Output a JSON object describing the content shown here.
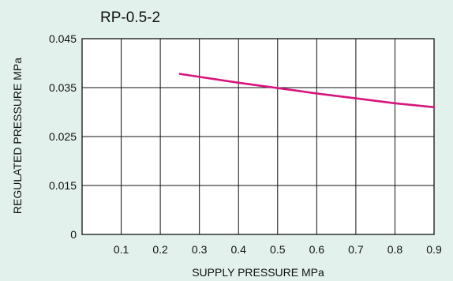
{
  "chart_data": {
    "type": "line",
    "title": "RP-0.5-2",
    "xlabel": "SUPPLY PRESSURE  MPa",
    "ylabel": "REGULATED PRESSURE  MPa",
    "xlim": [
      0,
      0.9
    ],
    "ylim": [
      0,
      0.045
    ],
    "x_ticks": [
      "0.1",
      "0.2",
      "0.3",
      "0.4",
      "0.5",
      "0.6",
      "0.7",
      "0.8",
      "0.9"
    ],
    "y_ticks": [
      "0",
      "0.015",
      "0.025",
      "0.035",
      "0.045"
    ],
    "grid": true,
    "series": [
      {
        "color": "#d6157d",
        "x": [
          0.25,
          0.3,
          0.4,
          0.5,
          0.6,
          0.7,
          0.8,
          0.9
        ],
        "y": [
          0.0378,
          0.0372,
          0.036,
          0.0349,
          0.0338,
          0.0328,
          0.0318,
          0.031
        ]
      }
    ]
  }
}
